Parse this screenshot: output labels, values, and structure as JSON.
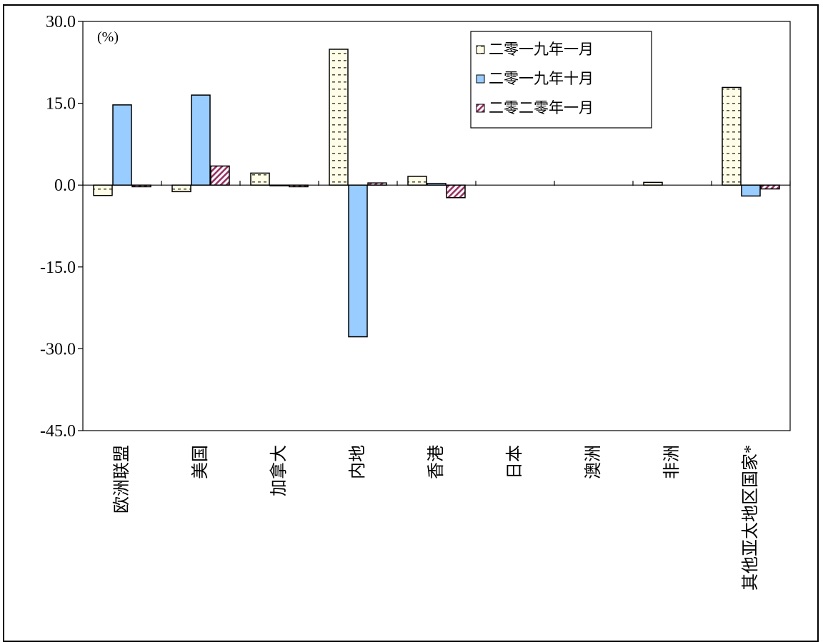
{
  "chart_data": {
    "type": "bar",
    "unit_label": "(%)",
    "ylim": [
      -45,
      30
    ],
    "yticks": [
      30,
      15,
      0,
      -15,
      -30,
      -45
    ],
    "ytick_labels": [
      "30.0",
      "15.0",
      "0.0",
      "-15.0",
      "-30.0",
      "-45.0"
    ],
    "grid": false,
    "legend_position": "top-right",
    "categories": [
      "欧洲联盟",
      "美国",
      "加拿大",
      "内地",
      "香港",
      "日本",
      "澳洲",
      "非洲",
      "其他亚太地区国家*"
    ],
    "series": [
      {
        "name": "二零一九年一月",
        "pattern": "dotted",
        "color": "#fffde8",
        "values": [
          -1.9,
          -1.2,
          2.2,
          24.9,
          1.6,
          0.0,
          0.0,
          0.5,
          17.9
        ]
      },
      {
        "name": "二零一九年十月",
        "pattern": "solid",
        "color": "#99ccff",
        "values": [
          14.7,
          16.5,
          -0.1,
          -27.8,
          0.3,
          0.0,
          0.0,
          0.0,
          -2.0
        ]
      },
      {
        "name": "二零二零年一月",
        "pattern": "hatched",
        "color": "#993366",
        "values": [
          -0.3,
          3.5,
          -0.3,
          0.4,
          -2.3,
          0.0,
          0.0,
          0.0,
          -0.7
        ]
      }
    ]
  }
}
